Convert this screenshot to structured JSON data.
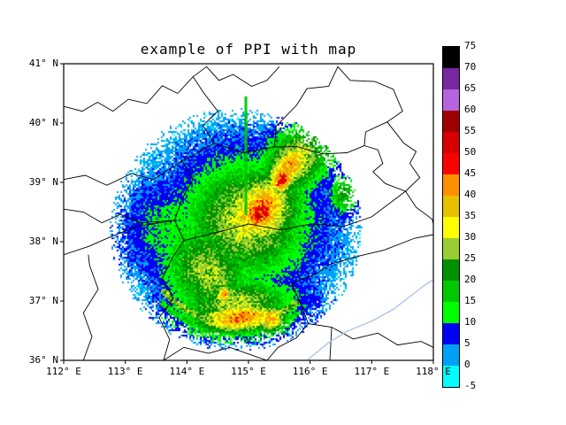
{
  "chart_data": {
    "type": "heatmap",
    "title": "example of PPI with map",
    "grid": false,
    "legend": "colorbar-right",
    "x_axis": {
      "range": [
        112,
        118
      ],
      "ticks": [
        112,
        113,
        114,
        115,
        116,
        117,
        118
      ],
      "tick_labels": [
        "112° E",
        "113° E",
        "114° E",
        "115° E",
        "116° E",
        "117° E",
        "118° E"
      ]
    },
    "y_axis": {
      "range": [
        36,
        41
      ],
      "ticks": [
        36,
        37,
        38,
        39,
        40,
        41
      ],
      "tick_labels": [
        "36° N",
        "37° N",
        "38° N",
        "39° N",
        "40° N",
        "41° N"
      ]
    },
    "colorbar": {
      "levels": [
        -5,
        0,
        5,
        10,
        15,
        20,
        25,
        30,
        35,
        40,
        45,
        50,
        55,
        60,
        65,
        70,
        75
      ],
      "colors": [
        "#00FFFF",
        "#00A0F6",
        "#0000F6",
        "#00FF00",
        "#00C800",
        "#009000",
        "#9ACD32",
        "#FFFF00",
        "#E7C000",
        "#FF9000",
        "#FF0000",
        "#D60000",
        "#A00000",
        "#B464DC",
        "#7828A0",
        "#000000"
      ]
    },
    "radar": {
      "center_lon": 114.8,
      "center_lat": 38.2,
      "range_deg": 2.05,
      "blobs": [
        [
          114.8,
          38.2,
          1.5,
          1.42,
          0,
          9
        ],
        [
          113.9,
          38.2,
          0.9,
          0.85,
          0,
          14
        ],
        [
          114.95,
          38.35,
          1.05,
          1.05,
          0,
          30
        ],
        [
          114.35,
          37.5,
          0.7,
          0.9,
          25,
          28
        ],
        [
          115.15,
          38.5,
          0.7,
          0.85,
          -35,
          38
        ],
        [
          115.2,
          38.55,
          0.5,
          0.65,
          -35,
          44
        ],
        [
          115.2,
          38.5,
          0.28,
          0.42,
          -35,
          52
        ],
        [
          115.55,
          39.05,
          0.2,
          0.3,
          -35,
          50
        ],
        [
          115.65,
          39.25,
          0.3,
          0.55,
          -40,
          43
        ],
        [
          115.75,
          39.35,
          0.5,
          0.75,
          -40,
          32
        ],
        [
          114.85,
          36.72,
          0.75,
          0.28,
          5,
          43
        ],
        [
          114.8,
          36.95,
          1.0,
          0.5,
          0,
          29
        ],
        [
          115.35,
          36.7,
          0.3,
          0.25,
          0,
          40
        ],
        [
          116.2,
          39.5,
          0.35,
          0.5,
          -30,
          20
        ],
        [
          116.55,
          38.8,
          0.25,
          0.35,
          0,
          22
        ],
        [
          116.0,
          40.0,
          0.2,
          0.18,
          0,
          14
        ],
        [
          114.6,
          37.1,
          0.15,
          0.2,
          0,
          41
        ]
      ],
      "arcs": [
        [
          1.52,
          1.62,
          -50,
          40,
          26
        ],
        [
          1.68,
          1.76,
          -45,
          35,
          16
        ],
        [
          1.84,
          1.92,
          -40,
          30,
          10
        ]
      ],
      "spike": {
        "lon": 114.95,
        "lat_from": 38.45,
        "lat_to": 40.45,
        "level": 17
      }
    },
    "map": {
      "boundary_color": "#000000",
      "river_color": "#AEC6E8",
      "boundaries": [
        [
          [
            112.0,
            40.28
          ],
          [
            112.3,
            40.2
          ],
          [
            112.55,
            40.35
          ],
          [
            112.8,
            40.2
          ],
          [
            113.05,
            40.4
          ],
          [
            113.35,
            40.33
          ],
          [
            113.6,
            40.63
          ],
          [
            113.85,
            40.5
          ],
          [
            114.1,
            40.78
          ],
          [
            114.32,
            40.95
          ]
        ],
        [
          [
            114.32,
            40.95
          ],
          [
            114.52,
            40.72
          ],
          [
            114.75,
            40.82
          ],
          [
            115.05,
            40.62
          ],
          [
            115.3,
            40.72
          ],
          [
            115.5,
            40.95
          ]
        ],
        [
          [
            113.62,
            36.0
          ],
          [
            113.72,
            36.35
          ],
          [
            113.55,
            36.72
          ],
          [
            113.78,
            37.05
          ],
          [
            113.6,
            37.38
          ],
          [
            113.76,
            37.72
          ],
          [
            113.95,
            38.02
          ],
          [
            113.8,
            38.36
          ],
          [
            113.92,
            38.72
          ],
          [
            114.1,
            39.06
          ],
          [
            113.92,
            39.36
          ],
          [
            114.45,
            39.66
          ],
          [
            114.26,
            39.96
          ],
          [
            114.5,
            40.2
          ],
          [
            114.28,
            40.5
          ],
          [
            114.1,
            40.78
          ]
        ],
        [
          [
            115.42,
            39.6
          ],
          [
            115.45,
            39.95
          ],
          [
            115.78,
            40.3
          ],
          [
            115.95,
            40.58
          ],
          [
            116.3,
            40.62
          ],
          [
            116.45,
            40.95
          ],
          [
            116.65,
            40.72
          ],
          [
            117.05,
            40.7
          ],
          [
            117.35,
            40.57
          ],
          [
            117.5,
            40.2
          ],
          [
            117.25,
            40.02
          ],
          [
            116.9,
            39.85
          ],
          [
            116.88,
            39.62
          ],
          [
            116.6,
            39.5
          ],
          [
            116.2,
            39.48
          ],
          [
            115.8,
            39.6
          ],
          [
            115.42,
            39.6
          ]
        ],
        [
          [
            116.88,
            39.62
          ],
          [
            117.1,
            39.55
          ],
          [
            117.18,
            39.32
          ],
          [
            117.02,
            39.18
          ],
          [
            117.22,
            38.98
          ],
          [
            117.55,
            38.85
          ],
          [
            117.78,
            39.08
          ],
          [
            117.62,
            39.32
          ],
          [
            117.72,
            39.52
          ],
          [
            117.52,
            39.66
          ],
          [
            117.25,
            40.02
          ]
        ],
        [
          [
            117.55,
            38.85
          ],
          [
            117.72,
            38.58
          ],
          [
            117.98,
            38.38
          ],
          [
            118.0,
            38.3
          ]
        ],
        [
          [
            115.3,
            36.0
          ],
          [
            115.48,
            36.22
          ],
          [
            115.78,
            36.38
          ],
          [
            115.97,
            36.62
          ],
          [
            115.86,
            36.92
          ],
          [
            115.7,
            37.3
          ],
          [
            116.1,
            37.46
          ],
          [
            116.32,
            37.62
          ],
          [
            116.8,
            37.76
          ],
          [
            117.2,
            37.86
          ],
          [
            117.7,
            38.06
          ],
          [
            118.0,
            38.12
          ]
        ],
        [
          [
            113.62,
            36.0
          ],
          [
            113.95,
            36.22
          ],
          [
            114.35,
            36.12
          ],
          [
            114.7,
            36.22
          ],
          [
            115.02,
            36.1
          ],
          [
            115.3,
            36.0
          ]
        ],
        [
          [
            112.0,
            39.05
          ],
          [
            112.35,
            39.12
          ],
          [
            112.7,
            38.95
          ],
          [
            113.1,
            39.15
          ],
          [
            113.45,
            39.05
          ],
          [
            113.92,
            39.36
          ]
        ],
        [
          [
            112.0,
            37.78
          ],
          [
            112.4,
            37.92
          ],
          [
            112.8,
            38.1
          ],
          [
            113.2,
            38.26
          ],
          [
            113.8,
            38.36
          ]
        ],
        [
          [
            112.32,
            36.0
          ],
          [
            112.46,
            36.4
          ],
          [
            112.32,
            36.8
          ],
          [
            112.56,
            37.2
          ],
          [
            112.42,
            37.6
          ],
          [
            112.4,
            37.78
          ]
        ],
        [
          [
            112.0,
            38.55
          ],
          [
            112.32,
            38.5
          ],
          [
            112.62,
            38.32
          ],
          [
            112.92,
            38.46
          ],
          [
            113.26,
            38.32
          ],
          [
            113.8,
            38.36
          ]
        ],
        [
          [
            113.95,
            38.02
          ],
          [
            114.5,
            38.16
          ],
          [
            115.0,
            38.3
          ],
          [
            115.52,
            38.2
          ],
          [
            116.02,
            38.3
          ],
          [
            116.55,
            38.26
          ],
          [
            117.0,
            38.42
          ],
          [
            117.55,
            38.85
          ]
        ],
        [
          [
            114.45,
            39.66
          ],
          [
            114.92,
            39.5
          ],
          [
            115.42,
            39.6
          ]
        ],
        [
          [
            115.97,
            36.62
          ],
          [
            116.35,
            36.56
          ],
          [
            116.7,
            36.36
          ],
          [
            117.1,
            36.46
          ],
          [
            117.42,
            36.26
          ],
          [
            117.8,
            36.32
          ],
          [
            118.0,
            36.22
          ]
        ],
        [
          [
            116.32,
            36.0
          ],
          [
            116.35,
            36.56
          ]
        ]
      ],
      "rivers": [
        [
          [
            115.95,
            36.0
          ],
          [
            116.3,
            36.3
          ],
          [
            116.62,
            36.5
          ],
          [
            117.0,
            36.66
          ],
          [
            117.35,
            36.86
          ],
          [
            117.6,
            37.06
          ],
          [
            117.85,
            37.26
          ],
          [
            118.0,
            37.36
          ]
        ]
      ]
    }
  }
}
